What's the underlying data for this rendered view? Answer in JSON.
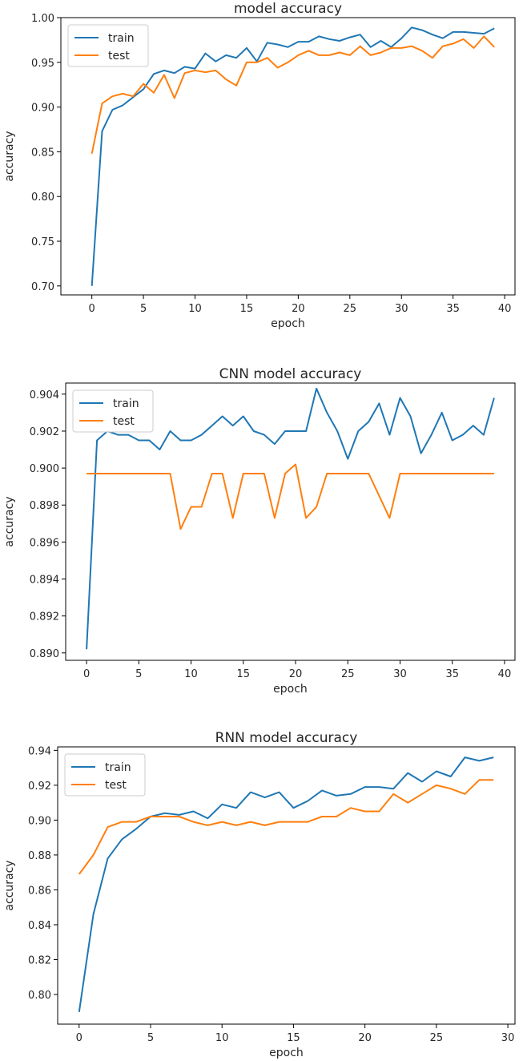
{
  "chart_data": [
    {
      "type": "line",
      "title": "model accuracy",
      "xlabel": "epoch",
      "ylabel": "accuracy",
      "xlim": [
        -3,
        41
      ],
      "ylim": [
        0.69,
        1.0
      ],
      "xticks": [
        0,
        5,
        10,
        15,
        20,
        25,
        30,
        35,
        40
      ],
      "xticklabels": [
        "0",
        "5",
        "10",
        "15",
        "20",
        "25",
        "30",
        "35",
        "40"
      ],
      "yticks": [
        0.7,
        0.75,
        0.8,
        0.85,
        0.9,
        0.95,
        1.0
      ],
      "yticklabels": [
        "0.70",
        "0.75",
        "0.80",
        "0.85",
        "0.90",
        "0.95",
        "1.00"
      ],
      "legend": "top-left",
      "series": [
        {
          "name": "train",
          "color": "#1f77b4",
          "x": [
            0,
            1,
            2,
            3,
            4,
            5,
            6,
            7,
            8,
            9,
            10,
            11,
            12,
            13,
            14,
            15,
            16,
            17,
            18,
            19,
            20,
            21,
            22,
            23,
            24,
            25,
            26,
            27,
            28,
            29,
            30,
            31,
            32,
            33,
            34,
            35,
            36,
            37,
            38,
            39
          ],
          "values": [
            0.7,
            0.873,
            0.897,
            0.902,
            0.911,
            0.92,
            0.937,
            0.941,
            0.938,
            0.945,
            0.943,
            0.96,
            0.951,
            0.958,
            0.955,
            0.966,
            0.951,
            0.972,
            0.97,
            0.967,
            0.973,
            0.973,
            0.979,
            0.976,
            0.974,
            0.978,
            0.981,
            0.967,
            0.974,
            0.967,
            0.977,
            0.989,
            0.986,
            0.981,
            0.977,
            0.984,
            0.984,
            0.983,
            0.982,
            0.988
          ]
        },
        {
          "name": "test",
          "color": "#ff7f0e",
          "x": [
            0,
            1,
            2,
            3,
            4,
            5,
            6,
            7,
            8,
            9,
            10,
            11,
            12,
            13,
            14,
            15,
            16,
            17,
            18,
            19,
            20,
            21,
            22,
            23,
            24,
            25,
            26,
            27,
            28,
            29,
            30,
            31,
            32,
            33,
            34,
            35,
            36,
            37,
            38,
            39
          ],
          "values": [
            0.848,
            0.904,
            0.912,
            0.915,
            0.912,
            0.926,
            0.916,
            0.936,
            0.91,
            0.938,
            0.941,
            0.939,
            0.941,
            0.931,
            0.924,
            0.95,
            0.95,
            0.955,
            0.944,
            0.95,
            0.958,
            0.963,
            0.958,
            0.958,
            0.961,
            0.958,
            0.968,
            0.958,
            0.961,
            0.966,
            0.966,
            0.968,
            0.963,
            0.955,
            0.968,
            0.971,
            0.976,
            0.966,
            0.979,
            0.967
          ]
        }
      ]
    },
    {
      "type": "line",
      "title": "CNN model accuracy",
      "xlabel": "epoch",
      "ylabel": "accuracy",
      "xlim": [
        -2,
        41
      ],
      "ylim": [
        0.8896,
        0.9046
      ],
      "xticks": [
        0,
        5,
        10,
        15,
        20,
        25,
        30,
        35,
        40
      ],
      "xticklabels": [
        "0",
        "5",
        "10",
        "15",
        "20",
        "25",
        "30",
        "35",
        "40"
      ],
      "yticks": [
        0.89,
        0.892,
        0.894,
        0.896,
        0.898,
        0.9,
        0.902,
        0.904
      ],
      "yticklabels": [
        "0.890",
        "0.892",
        "0.894",
        "0.896",
        "0.898",
        "0.900",
        "0.902",
        "0.904"
      ],
      "legend": "top-left",
      "series": [
        {
          "name": "train",
          "color": "#1f77b4",
          "x": [
            0,
            1,
            2,
            3,
            4,
            5,
            6,
            7,
            8,
            9,
            10,
            11,
            12,
            13,
            14,
            15,
            16,
            17,
            18,
            19,
            20,
            21,
            22,
            23,
            24,
            25,
            26,
            27,
            28,
            29,
            30,
            31,
            32,
            33,
            34,
            35,
            36,
            37,
            38,
            39
          ],
          "values": [
            0.8902,
            0.9015,
            0.902,
            0.9018,
            0.9018,
            0.9015,
            0.9015,
            0.901,
            0.902,
            0.9015,
            0.9015,
            0.9018,
            0.9023,
            0.9028,
            0.9023,
            0.9028,
            0.902,
            0.9018,
            0.9013,
            0.902,
            0.902,
            0.902,
            0.9043,
            0.903,
            0.902,
            0.9005,
            0.902,
            0.9025,
            0.9035,
            0.9018,
            0.9038,
            0.9028,
            0.9008,
            0.9018,
            0.903,
            0.9015,
            0.9018,
            0.9023,
            0.9018,
            0.9038
          ]
        },
        {
          "name": "test",
          "color": "#ff7f0e",
          "x": [
            0,
            1,
            2,
            3,
            4,
            5,
            6,
            7,
            8,
            9,
            10,
            11,
            12,
            13,
            14,
            15,
            16,
            17,
            18,
            19,
            20,
            21,
            22,
            23,
            24,
            25,
            26,
            27,
            28,
            29,
            30,
            31,
            32,
            33,
            34,
            35,
            36,
            37,
            38,
            39
          ],
          "values": [
            0.8997,
            0.8997,
            0.8997,
            0.8997,
            0.8997,
            0.8997,
            0.8997,
            0.8997,
            0.8997,
            0.8967,
            0.8979,
            0.8979,
            0.8997,
            0.8997,
            0.8973,
            0.8997,
            0.8997,
            0.8997,
            0.8973,
            0.8997,
            0.9002,
            0.8973,
            0.8979,
            0.8997,
            0.8997,
            0.8997,
            0.8997,
            0.8997,
            0.8985,
            0.8973,
            0.8997,
            0.8997,
            0.8997,
            0.8997,
            0.8997,
            0.8997,
            0.8997,
            0.8997,
            0.8997,
            0.8997
          ]
        }
      ]
    },
    {
      "type": "line",
      "title": "RNN model accuracy",
      "xlabel": "epoch",
      "ylabel": "accuracy",
      "xlim": [
        -1.5,
        30.5
      ],
      "ylim": [
        0.783,
        0.942
      ],
      "xticks": [
        0,
        5,
        10,
        15,
        20,
        25,
        30
      ],
      "xticklabels": [
        "0",
        "5",
        "10",
        "15",
        "20",
        "25",
        "30"
      ],
      "yticks": [
        0.8,
        0.82,
        0.84,
        0.86,
        0.88,
        0.9,
        0.92,
        0.94
      ],
      "yticklabels": [
        "0.80",
        "0.82",
        "0.84",
        "0.86",
        "0.88",
        "0.90",
        "0.92",
        "0.94"
      ],
      "legend": "top-left",
      "series": [
        {
          "name": "train",
          "color": "#1f77b4",
          "x": [
            0,
            1,
            2,
            3,
            4,
            5,
            6,
            7,
            8,
            9,
            10,
            11,
            12,
            13,
            14,
            15,
            16,
            17,
            18,
            19,
            20,
            21,
            22,
            23,
            24,
            25,
            26,
            27,
            28,
            29
          ],
          "values": [
            0.79,
            0.846,
            0.878,
            0.889,
            0.895,
            0.902,
            0.904,
            0.903,
            0.905,
            0.901,
            0.909,
            0.907,
            0.916,
            0.913,
            0.916,
            0.907,
            0.911,
            0.917,
            0.914,
            0.915,
            0.919,
            0.919,
            0.918,
            0.927,
            0.922,
            0.928,
            0.925,
            0.936,
            0.934,
            0.936
          ]
        },
        {
          "name": "test",
          "color": "#ff7f0e",
          "x": [
            0,
            1,
            2,
            3,
            4,
            5,
            6,
            7,
            8,
            9,
            10,
            11,
            12,
            13,
            14,
            15,
            16,
            17,
            18,
            19,
            20,
            21,
            22,
            23,
            24,
            25,
            26,
            27,
            28,
            29
          ],
          "values": [
            0.869,
            0.88,
            0.896,
            0.899,
            0.899,
            0.902,
            0.902,
            0.902,
            0.899,
            0.897,
            0.899,
            0.897,
            0.899,
            0.897,
            0.899,
            0.899,
            0.899,
            0.902,
            0.902,
            0.907,
            0.905,
            0.905,
            0.915,
            0.91,
            0.915,
            0.92,
            0.918,
            0.915,
            0.923,
            0.923
          ]
        }
      ]
    }
  ]
}
